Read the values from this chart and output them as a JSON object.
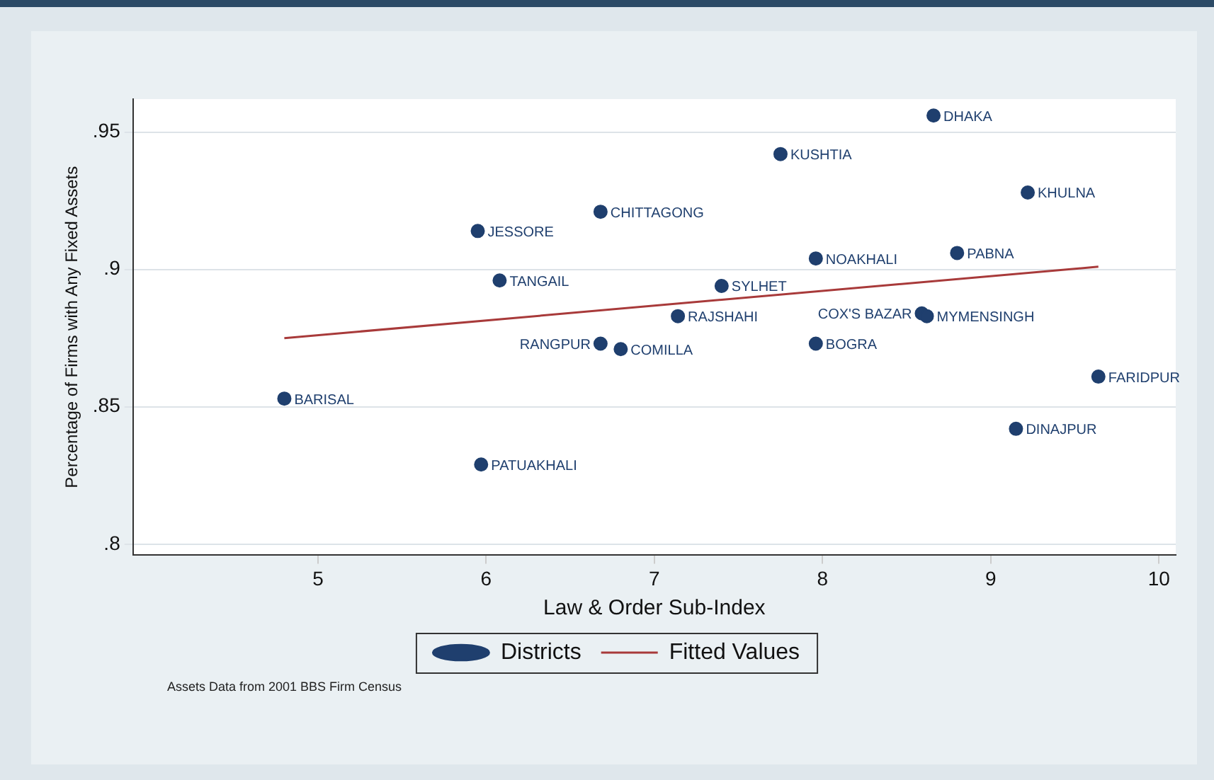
{
  "chart_data": {
    "type": "scatter",
    "xlabel": "Law & Order Sub-Index",
    "ylabel": "Percentage of Firms with Any Fixed Assets",
    "xlim": [
      3.9,
      10.1
    ],
    "ylim": [
      0.796,
      0.962
    ],
    "xticks": [
      5,
      6,
      7,
      8,
      9,
      10
    ],
    "yticks": [
      {
        "value": 0.8,
        "label": ".8"
      },
      {
        "value": 0.85,
        "label": ".85"
      },
      {
        "value": 0.9,
        "label": ".9"
      },
      {
        "value": 0.95,
        "label": ".95"
      }
    ],
    "grid": "y",
    "legend": "bottom",
    "series": [
      {
        "name": "Districts",
        "type": "scatter",
        "marker": "circle",
        "color": "#1f3f6e",
        "x": [
          8.66,
          7.75,
          9.22,
          6.68,
          5.95,
          8.8,
          7.96,
          6.08,
          7.4,
          7.14,
          8.59,
          8.62,
          6.68,
          6.8,
          7.96,
          9.64,
          4.8,
          9.15,
          5.97
        ],
        "values": [
          0.956,
          0.942,
          0.928,
          0.921,
          0.914,
          0.906,
          0.904,
          0.896,
          0.894,
          0.883,
          0.884,
          0.883,
          0.873,
          0.871,
          0.873,
          0.861,
          0.853,
          0.842,
          0.829
        ],
        "value_labels": [
          "DHAKA",
          "KUSHTIA",
          "KHULNA",
          "CHITTAGONG",
          "JESSORE",
          "PABNA",
          "NOAKHALI",
          "TANGAIL",
          "SYLHET",
          "RAJSHAHI",
          "COX'S BAZAR",
          "MYMENSINGH",
          "RANGPUR",
          "COMILLA",
          "BOGRA",
          "FARIDPUR",
          "BARISAL",
          "DINAJPUR",
          "PATUAKHALI"
        ]
      },
      {
        "name": "Fitted Values",
        "type": "line",
        "color": "#a83a3a",
        "x": [
          4.8,
          9.64
        ],
        "values": [
          0.875,
          0.901
        ]
      }
    ],
    "annotations": [
      "Assets Data from 2001 BBS Firm Census"
    ]
  }
}
